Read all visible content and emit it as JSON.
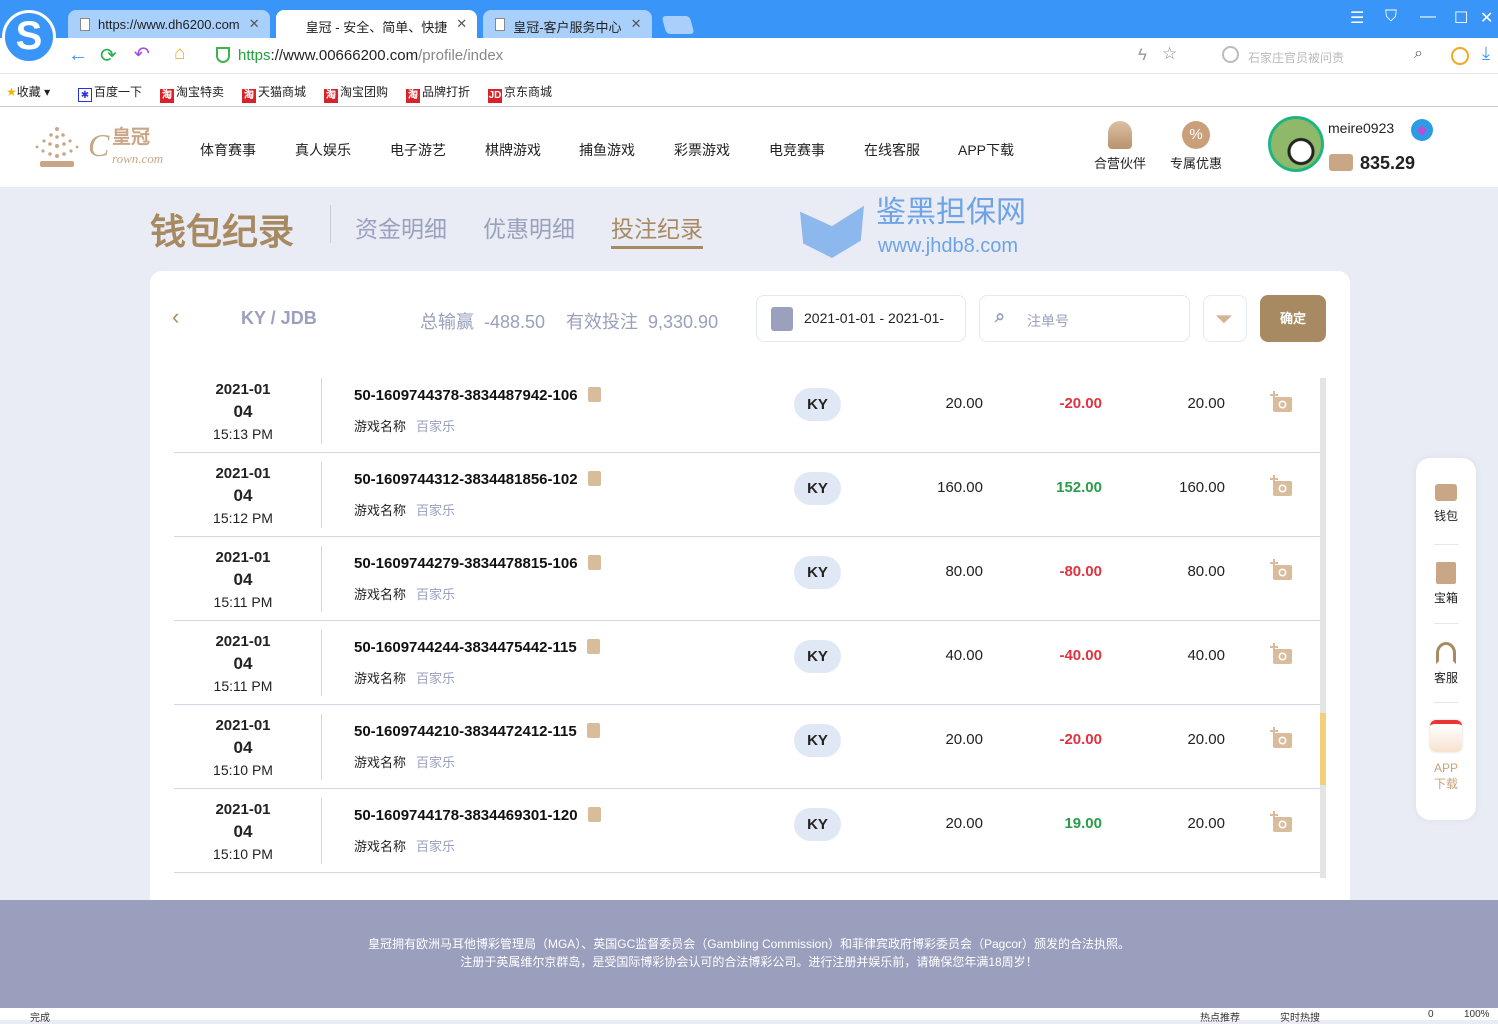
{
  "browser": {
    "tabs": [
      {
        "label": "https://www.dh6200.com"
      },
      {
        "label": "皇冠 - 安全、简单、快捷"
      },
      {
        "label": "皇冠-客户服务中心"
      }
    ],
    "url_scheme": "https",
    "url_host": "://www.00666200.com",
    "url_path": "/profile/index",
    "search_placeholder": "石家庄官员被问责",
    "bookmarks": [
      {
        "label": "收藏"
      },
      {
        "label": "百度一下"
      },
      {
        "label": "淘宝特卖"
      },
      {
        "label": "天猫商城"
      },
      {
        "label": "淘宝团购"
      },
      {
        "label": "品牌打折"
      },
      {
        "label": "京东商城"
      }
    ],
    "status": {
      "left": "完成",
      "hot": "热点推荐",
      "realtime": "实时热搜",
      "count": "0",
      "zoom": "100%"
    }
  },
  "site": {
    "logo_text": "皇冠 Crown.com",
    "nav": [
      "体育赛事",
      "真人娱乐",
      "电子游艺",
      "棋牌游戏",
      "捕鱼游戏",
      "彩票游戏",
      "电竞赛事",
      "在线客服",
      "APP下载"
    ],
    "partner": "合营伙伴",
    "promo": "专属优惠",
    "username": "meire0923",
    "balance": "835.29"
  },
  "page": {
    "title": "钱包纪录",
    "tabs": [
      {
        "label": "资金明细"
      },
      {
        "label": "优惠明细"
      },
      {
        "label": "投注纪录",
        "active": true
      }
    ],
    "platform": "KY / JDB",
    "total_label": "总输赢",
    "total_value": "-488.50",
    "valid_label": "有效投注",
    "valid_value": "9,330.90",
    "date_range": "2021-01-01 - 2021-01-",
    "order_placeholder": "注单号",
    "confirm": "确定",
    "game_name_label": "游戏名称",
    "rows": [
      {
        "ym": "2021-01",
        "d": "04",
        "time": "15:13 PM",
        "id": "50-1609744378-3834487942-106",
        "game": "百家乐",
        "badge": "KY",
        "bet": "20.00",
        "win": "-20.00",
        "valid": "20.00"
      },
      {
        "ym": "2021-01",
        "d": "04",
        "time": "15:12 PM",
        "id": "50-1609744312-3834481856-102",
        "game": "百家乐",
        "badge": "KY",
        "bet": "160.00",
        "win": "152.00",
        "valid": "160.00"
      },
      {
        "ym": "2021-01",
        "d": "04",
        "time": "15:11 PM",
        "id": "50-1609744279-3834478815-106",
        "game": "百家乐",
        "badge": "KY",
        "bet": "80.00",
        "win": "-80.00",
        "valid": "80.00"
      },
      {
        "ym": "2021-01",
        "d": "04",
        "time": "15:11 PM",
        "id": "50-1609744244-3834475442-115",
        "game": "百家乐",
        "badge": "KY",
        "bet": "40.00",
        "win": "-40.00",
        "valid": "40.00"
      },
      {
        "ym": "2021-01",
        "d": "04",
        "time": "15:10 PM",
        "id": "50-1609744210-3834472412-115",
        "game": "百家乐",
        "badge": "KY",
        "bet": "20.00",
        "win": "-20.00",
        "valid": "20.00"
      },
      {
        "ym": "2021-01",
        "d": "04",
        "time": "15:10 PM",
        "id": "50-1609744178-3834469301-120",
        "game": "百家乐",
        "badge": "KY",
        "bet": "20.00",
        "win": "19.00",
        "valid": "20.00"
      }
    ]
  },
  "sidebar": [
    {
      "label": "钱包"
    },
    {
      "label": "宝箱"
    },
    {
      "label": "客服"
    },
    {
      "label": "APP下载"
    }
  ],
  "footer": {
    "line1": "皇冠拥有欧洲马耳他博彩管理局（MGA）、英国GC监督委员会（Gambling Commission）和菲律宾政府博彩委员会（Pagcor）颁发的合法执照。",
    "line2": "注册于英属维尔京群岛，是受国际博彩协会认可的合法博彩公司。进行注册并娱乐前，请确保您年满18周岁！"
  },
  "watermark": {
    "text": "鉴黑担保网",
    "url": "www.jhdb8.com"
  },
  "colors": {
    "gold": "#a88a62",
    "loss": "#e0333f",
    "win": "#2a9c4a",
    "muted": "#9aa0bd",
    "browser_blue": "#3a95f8",
    "footer": "#9b9fbe"
  }
}
